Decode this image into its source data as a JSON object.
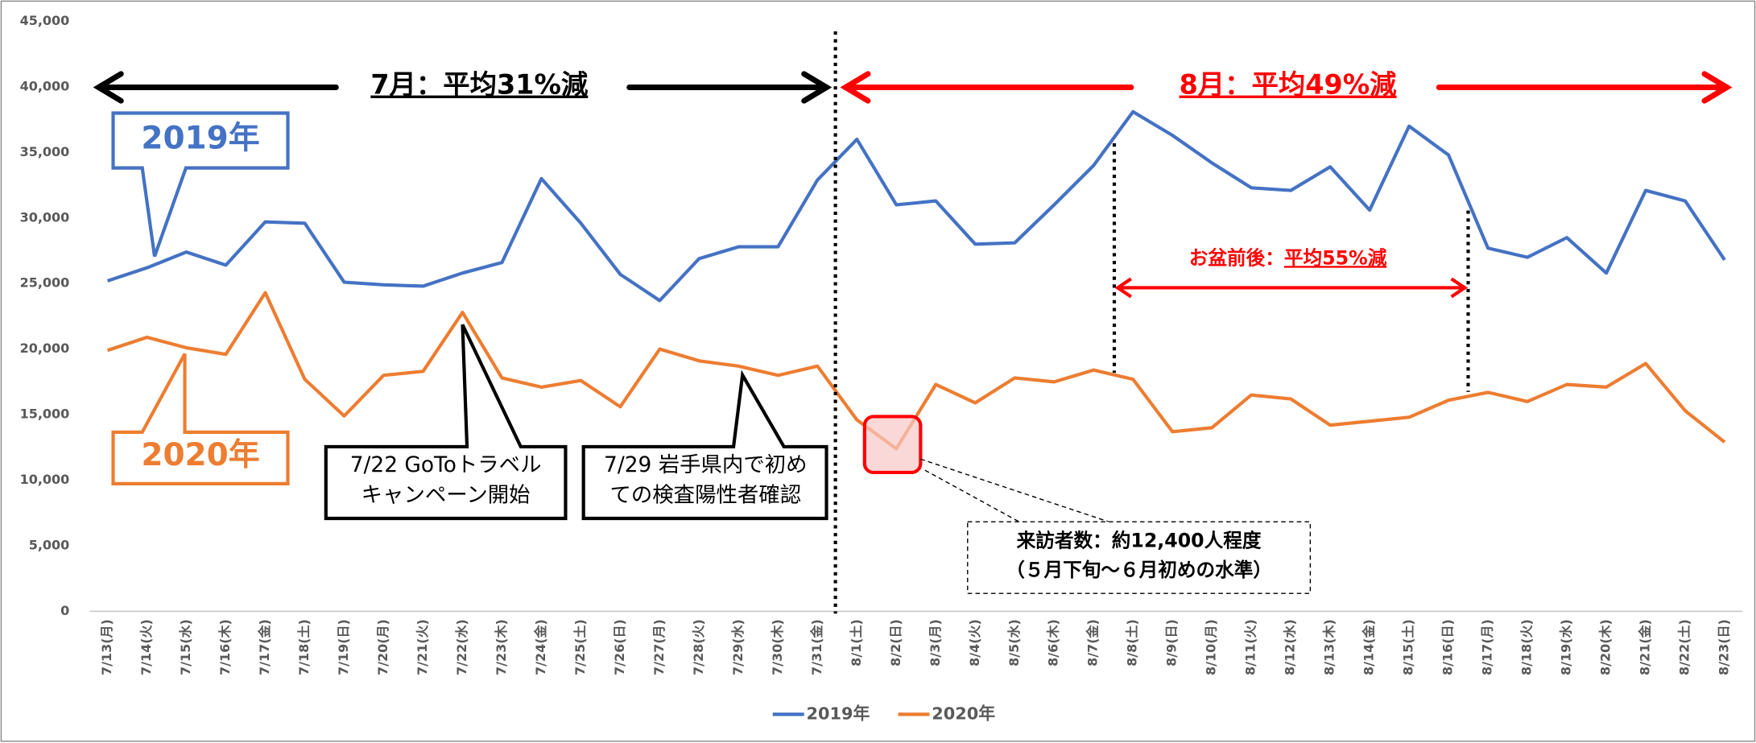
{
  "chart_data": {
    "type": "line",
    "categories": [
      "7/13(月)",
      "7/14(火)",
      "7/15(水)",
      "7/16(木)",
      "7/17(金)",
      "7/18(土)",
      "7/19(日)",
      "7/20(月)",
      "7/21(火)",
      "7/22(水)",
      "7/23(木)",
      "7/24(金)",
      "7/25(土)",
      "7/26(日)",
      "7/27(月)",
      "7/28(火)",
      "7/29(水)",
      "7/30(木)",
      "7/31(金)",
      "8/1(土)",
      "8/2(日)",
      "8/3(月)",
      "8/4(火)",
      "8/5(水)",
      "8/6(木)",
      "8/7(金)",
      "8/8(土)",
      "8/9(日)",
      "8/10(月)",
      "8/11(火)",
      "8/12(水)",
      "8/13(木)",
      "8/14(金)",
      "8/15(土)",
      "8/16(日)",
      "8/17(月)",
      "8/18(火)",
      "8/19(水)",
      "8/20(木)",
      "8/21(金)",
      "8/22(土)",
      "8/23(日)"
    ],
    "series": [
      {
        "name": "2019年",
        "color": "#4472c4",
        "values": [
          25200,
          26200,
          27400,
          26400,
          29700,
          29600,
          25100,
          24900,
          24800,
          25800,
          26600,
          33000,
          29600,
          25700,
          23700,
          26900,
          27800,
          27800,
          32900,
          36000,
          31000,
          31300,
          28000,
          28100,
          31000,
          34000,
          38100,
          36300,
          34200,
          32300,
          32100,
          33900,
          30600,
          37000,
          34800,
          27700,
          27000,
          28500,
          25800,
          32100,
          31300,
          26800
        ]
      },
      {
        "name": "2020年",
        "color": "#ed7d31",
        "values": [
          19900,
          20900,
          20100,
          19600,
          24300,
          17700,
          14900,
          18000,
          18300,
          22800,
          17800,
          17100,
          17600,
          15600,
          20000,
          19100,
          18700,
          18000,
          18700,
          14600,
          12400,
          17300,
          15900,
          17800,
          17500,
          18400,
          17700,
          13700,
          14000,
          16500,
          16200,
          14200,
          14500,
          14800,
          16100,
          16700,
          16000,
          17300,
          17100,
          18900,
          15300,
          12900
        ]
      }
    ],
    "ylim": [
      0,
      45000
    ],
    "yticks": [
      0,
      {
        "value": 5000,
        "label": "5,000"
      },
      {
        "value": 10000,
        "label": "10,000"
      },
      {
        "value": 15000,
        "label": "15,000"
      },
      {
        "value": 20000,
        "label": "20,000"
      },
      {
        "value": 25000,
        "label": "25,000"
      },
      {
        "value": 30000,
        "label": "30,000"
      },
      {
        "value": 35000,
        "label": "35,000"
      },
      {
        "value": 40000,
        "label": "40,000"
      },
      {
        "value": 45000,
        "label": "45,000"
      }
    ],
    "grid": false,
    "legend": "bottom",
    "annotations": {
      "july": "7月：平均31%減",
      "august": "8月：平均49%減",
      "obon_prefix": "お盆前後：",
      "obon_emphasis": "平均55%減",
      "goto": [
        "7/22 GoToトラベル",
        "キャンペーン開始"
      ],
      "positive": [
        "7/29 岩手県内で初め",
        "ての検査陽性者確認"
      ],
      "visitors": [
        "来訪者数：約12,400人程度",
        "（５月下旬～６月初めの水準）"
      ]
    }
  }
}
